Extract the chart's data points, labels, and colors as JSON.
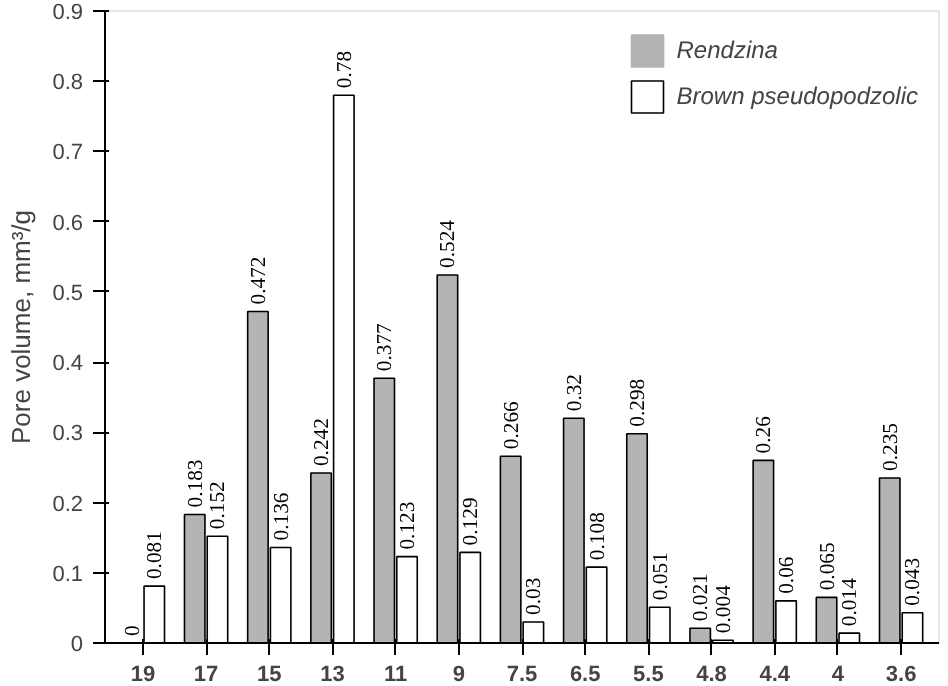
{
  "chart_data": {
    "type": "bar",
    "ylabel": "Pore volume, mm³/g",
    "categories": [
      "19",
      "17",
      "15",
      "13",
      "11",
      "9",
      "7.5",
      "6.5",
      "5.5",
      "4.8",
      "4.4",
      "4",
      "3.6"
    ],
    "series": [
      {
        "name": "Rendzina",
        "color": "#b4b4b4",
        "values": [
          0,
          0.183,
          0.472,
          0.242,
          0.377,
          0.524,
          0.266,
          0.32,
          0.298,
          0.021,
          0.26,
          0.065,
          0.235
        ]
      },
      {
        "name": "Brown pseudopodzolic",
        "color": "#ffffff",
        "values": [
          0.081,
          0.152,
          0.136,
          0.78,
          0.123,
          0.129,
          0.03,
          0.108,
          0.051,
          0.004,
          0.06,
          0.014,
          0.043
        ]
      }
    ],
    "ylim": [
      0,
      0.9
    ],
    "yticks": [
      0,
      0.1,
      0.2,
      0.3,
      0.4,
      0.5,
      0.6,
      0.7,
      0.8,
      0.9
    ],
    "data_labels": true,
    "legend": "top right",
    "grid": false
  }
}
